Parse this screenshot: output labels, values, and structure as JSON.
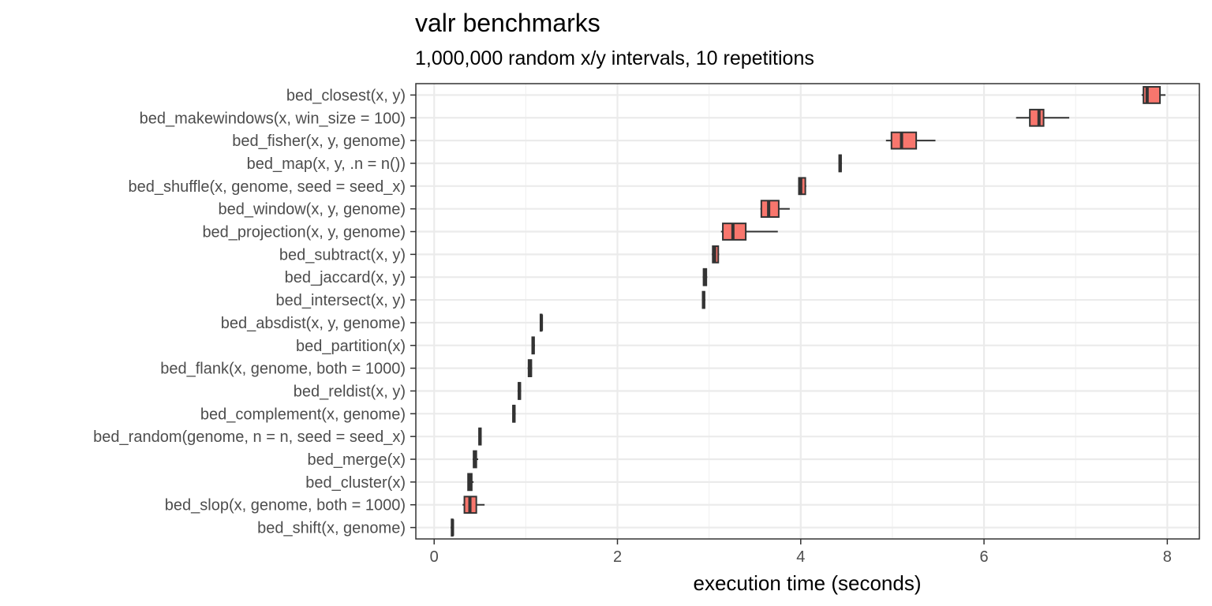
{
  "chart_data": {
    "type": "boxplot",
    "title": "valr benchmarks",
    "subtitle": "1,000,000 random x/y intervals, 10 repetitions",
    "xlabel": "execution time (seconds)",
    "ylabel": "",
    "xlim": [
      -0.2,
      8.35
    ],
    "xticks": [
      0,
      2,
      4,
      6,
      8
    ],
    "grid": true,
    "legend": "none",
    "box_color": "#f8766d",
    "outline_color": "#333333",
    "categories": [
      "bed_closest(x, y)",
      "bed_makewindows(x, win_size = 100)",
      "bed_fisher(x, y, genome)",
      "bed_map(x, y, .n = n())",
      "bed_shuffle(x, genome, seed = seed_x)",
      "bed_window(x, y, genome)",
      "bed_projection(x, y, genome)",
      "bed_subtract(x, y)",
      "bed_jaccard(x, y)",
      "bed_intersect(x, y)",
      "bed_absdist(x, y, genome)",
      "bed_partition(x)",
      "bed_flank(x, genome, both = 1000)",
      "bed_reldist(x, y)",
      "bed_complement(x, genome)",
      "bed_random(genome, n = n, seed = seed_x)",
      "bed_merge(x)",
      "bed_cluster(x)",
      "bed_slop(x, genome, both = 1000)",
      "bed_shift(x, genome)"
    ],
    "boxes": [
      {
        "min": 7.72,
        "q1": 7.74,
        "median": 7.78,
        "q3": 7.92,
        "max": 7.98
      },
      {
        "min": 6.35,
        "q1": 6.5,
        "median": 6.6,
        "q3": 6.65,
        "max": 6.93
      },
      {
        "min": 4.93,
        "q1": 4.99,
        "median": 5.1,
        "q3": 5.26,
        "max": 5.47
      },
      {
        "min": 4.42,
        "q1": 4.42,
        "median": 4.43,
        "q3": 4.44,
        "max": 4.45
      },
      {
        "min": 3.98,
        "q1": 3.98,
        "median": 4.0,
        "q3": 4.05,
        "max": 4.06
      },
      {
        "min": 3.56,
        "q1": 3.57,
        "median": 3.65,
        "q3": 3.76,
        "max": 3.88
      },
      {
        "min": 3.13,
        "q1": 3.15,
        "median": 3.26,
        "q3": 3.4,
        "max": 3.75
      },
      {
        "min": 3.03,
        "q1": 3.04,
        "median": 3.06,
        "q3": 3.1,
        "max": 3.11
      },
      {
        "min": 2.93,
        "q1": 2.94,
        "median": 2.95,
        "q3": 2.97,
        "max": 2.98
      },
      {
        "min": 2.93,
        "q1": 2.93,
        "median": 2.94,
        "q3": 2.95,
        "max": 2.96
      },
      {
        "min": 1.16,
        "q1": 1.16,
        "median": 1.17,
        "q3": 1.17,
        "max": 1.18
      },
      {
        "min": 1.07,
        "q1": 1.07,
        "median": 1.08,
        "q3": 1.09,
        "max": 1.1
      },
      {
        "min": 1.02,
        "q1": 1.03,
        "median": 1.05,
        "q3": 1.06,
        "max": 1.07
      },
      {
        "min": 0.91,
        "q1": 0.92,
        "median": 0.93,
        "q3": 0.94,
        "max": 0.95
      },
      {
        "min": 0.86,
        "q1": 0.86,
        "median": 0.87,
        "q3": 0.88,
        "max": 0.89
      },
      {
        "min": 0.49,
        "q1": 0.49,
        "median": 0.5,
        "q3": 0.51,
        "max": 0.51
      },
      {
        "min": 0.42,
        "q1": 0.43,
        "median": 0.45,
        "q3": 0.46,
        "max": 0.48
      },
      {
        "min": 0.37,
        "q1": 0.37,
        "median": 0.39,
        "q3": 0.41,
        "max": 0.43
      },
      {
        "min": 0.31,
        "q1": 0.33,
        "median": 0.39,
        "q3": 0.46,
        "max": 0.55
      },
      {
        "min": 0.18,
        "q1": 0.19,
        "median": 0.2,
        "q3": 0.2,
        "max": 0.21
      }
    ]
  }
}
